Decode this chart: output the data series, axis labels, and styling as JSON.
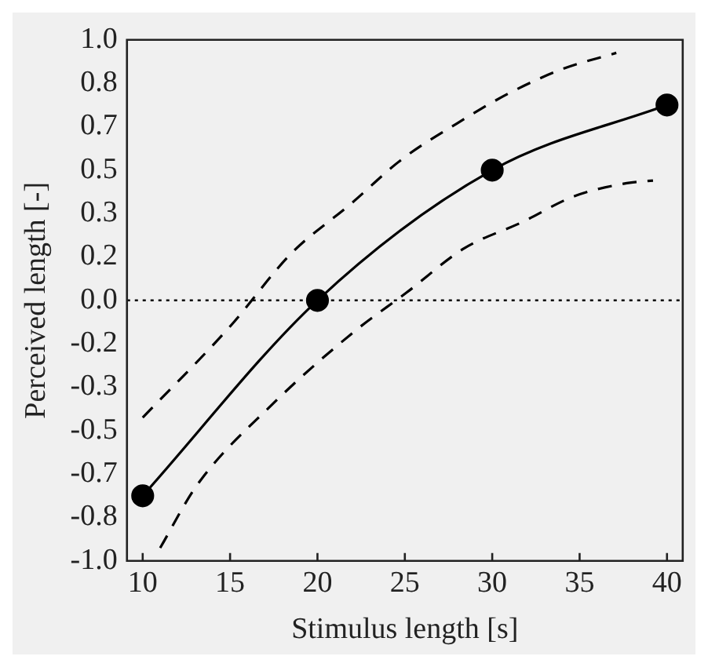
{
  "chart_data": {
    "type": "line",
    "xlabel": "Stimulus length [s]",
    "ylabel": "Perceived length [-]",
    "xlim": [
      9.1,
      40.9
    ],
    "xticks": [
      10,
      15,
      20,
      25,
      30,
      35,
      40
    ],
    "ylim": [
      -1,
      1
    ],
    "yticks": [
      {
        "value": -1,
        "label": "-1.0"
      },
      {
        "value": -0.833,
        "label": "-0.8"
      },
      {
        "value": -0.667,
        "label": "-0.7"
      },
      {
        "value": -0.5,
        "label": "-0.5"
      },
      {
        "value": -0.333,
        "label": "-0.3"
      },
      {
        "value": -0.167,
        "label": "-0.2"
      },
      {
        "value": 0,
        "label": "0.0"
      },
      {
        "value": 0.167,
        "label": "0.2"
      },
      {
        "value": 0.333,
        "label": "0.3"
      },
      {
        "value": 0.5,
        "label": "0.5"
      },
      {
        "value": 0.667,
        "label": "0.7"
      },
      {
        "value": 0.833,
        "label": "0.8"
      },
      {
        "value": 1,
        "label": "1.0"
      }
    ],
    "grid": false,
    "legend": false,
    "ref_lines": [
      {
        "axis": "y",
        "value": 0,
        "line_style": "dotted",
        "color": "#000000"
      }
    ],
    "series": [
      {
        "color": "#000000",
        "x": [
          10,
          20,
          30,
          40
        ],
        "values": [
          -0.75,
          0,
          0.5,
          0.75
        ],
        "marker": "circle",
        "line_style": "solid"
      },
      {
        "color": "#000000",
        "x": [
          10,
          15,
          18.5,
          21.9,
          24.8,
          28,
          31.1,
          34.1,
          37.1
        ],
        "values": [
          -0.45,
          -0.1,
          0.18,
          0.37,
          0.54,
          0.68,
          0.8,
          0.89,
          0.95
        ],
        "marker": "none",
        "line_style": "dashed"
      },
      {
        "color": "#000000",
        "x": [
          11,
          13.1,
          17.4,
          22.1,
          25.1,
          28.4,
          31.7,
          34.7,
          37.7,
          39.2
        ],
        "values": [
          -0.95,
          -0.71,
          -0.4,
          -0.12,
          0.03,
          0.2,
          0.3,
          0.4,
          0.45,
          0.46
        ],
        "marker": "none",
        "line_style": "dashed"
      }
    ]
  }
}
